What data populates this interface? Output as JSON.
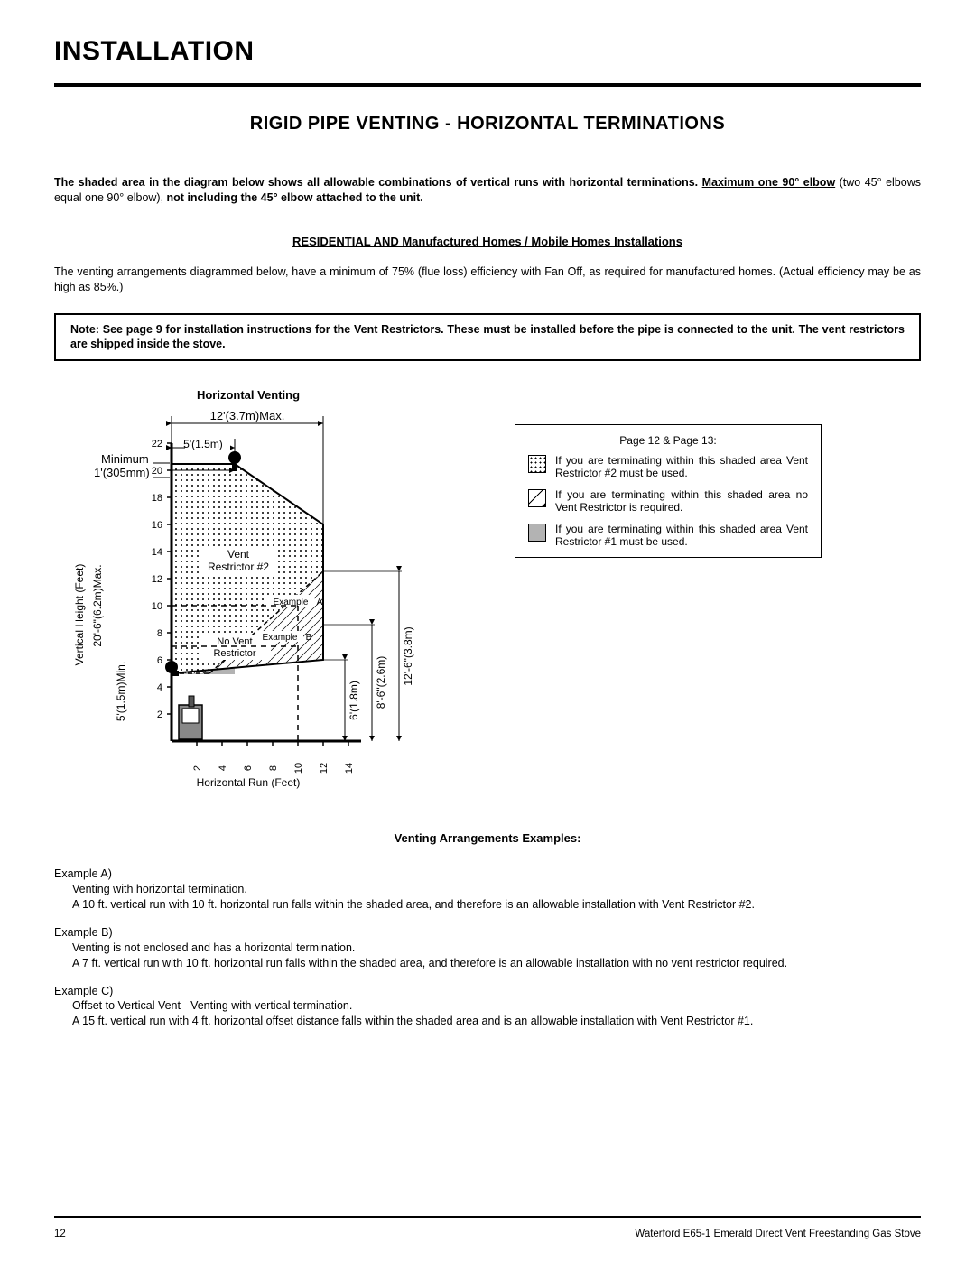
{
  "title": "INSTALLATION",
  "section_heading": "RIGID PIPE VENTING - HORIZONTAL TERMINATIONS",
  "intro": {
    "lead_bold": "The shaded area in the diagram below shows all allowable combinations of vertical runs with horizontal terminations. ",
    "max_underline": "Maximum one 90° elbow",
    "tail_normal_paren": " (two 45° elbows equal one 90° elbow), ",
    "tail_bold": "not including the 45° elbow attached to the unit."
  },
  "sub_heading": "RESIDENTIAL AND Manufactured Homes / Mobile Homes Installations",
  "efficiency_text": "The venting arrangements diagrammed below, have a minimum of 75% (flue loss) efficiency with Fan Off, as required for manufactured homes. (Actual efficiency may be as high as 85%.)",
  "note_box": "Note:  See page 9 for installation instructions for the Vent Restrictors. These must be installed before the pipe is connected to the unit. The vent restrictors are shipped inside the stove.",
  "diagram": {
    "title": "Horizontal Venting",
    "top_max": "12'(3.7m)Max.",
    "top_sub": "5'(1.5m)",
    "left_min_l1": "Minimum",
    "left_min_l2": "1'(305mm)",
    "vr2": "Vent",
    "vr2b": "Restrictor #2",
    "no_vent": "No Vent",
    "no_vent2": "Restrictor",
    "exA": "Example",
    "exA2": "A",
    "exB": "Example",
    "exB2": "B",
    "y_axis_title": "Vertical Height (Feet)",
    "y_axis_meta": "20'-6\"(6.2m)Max.",
    "y_axis_min": "5'(1.5m)Min.",
    "x_axis_title": "Horizontal Run (Feet)",
    "right_6": "6'(1.8m)",
    "right_8": "8'-6\"(2.6m)",
    "right_12": "12'-6\"(3.8m)",
    "y_ticks": [
      "2",
      "4",
      "6",
      "8",
      "10",
      "12",
      "14",
      "16",
      "18",
      "20",
      "22"
    ],
    "x_ticks": [
      "2",
      "4",
      "6",
      "8",
      "10",
      "12",
      "14"
    ],
    "colors": {
      "solid_region": "#b3b3b3",
      "axes": "#000000",
      "dim": "#000000"
    },
    "chart_bounds": {
      "x_feet": [
        0,
        15
      ],
      "y_feet": [
        0,
        22
      ]
    }
  },
  "legend": {
    "title": "Page 12 & Page 13:",
    "row1": "If you are terminating within this shaded area Vent Restrictor #2 must be used.",
    "row2": "If you are terminating within this shaded area  no Vent Restrictor is required.",
    "row3": "If you are terminating within this shaded area Vent Restrictor #1 must be used."
  },
  "examples_heading": "Venting Arrangements Examples:",
  "examples": {
    "A": {
      "label": "Example A)",
      "l1": "Venting with horizontal termination.",
      "l2": "A 10 ft. vertical run with 10 ft. horizontal run falls within the shaded area, and therefore is an allowable installation with Vent Restrictor #2."
    },
    "B": {
      "label": "Example B)",
      "l1": "Venting is not enclosed and has a horizontal termination.",
      "l2": "A 7 ft. vertical run with 10 ft. horizontal run falls within the shaded area, and therefore is an allowable installation with no vent restrictor required."
    },
    "C": {
      "label": "Example C)",
      "l1": "Offset to Vertical Vent - Venting with vertical termination.",
      "l2": "A 15 ft. vertical run with 4 ft. horizontal offset distance falls within the shaded area and is an allowable installation with Vent Restrictor #1."
    }
  },
  "footer": {
    "page": "12",
    "doc": "Waterford E65-1 Emerald Direct Vent Freestanding Gas Stove"
  }
}
